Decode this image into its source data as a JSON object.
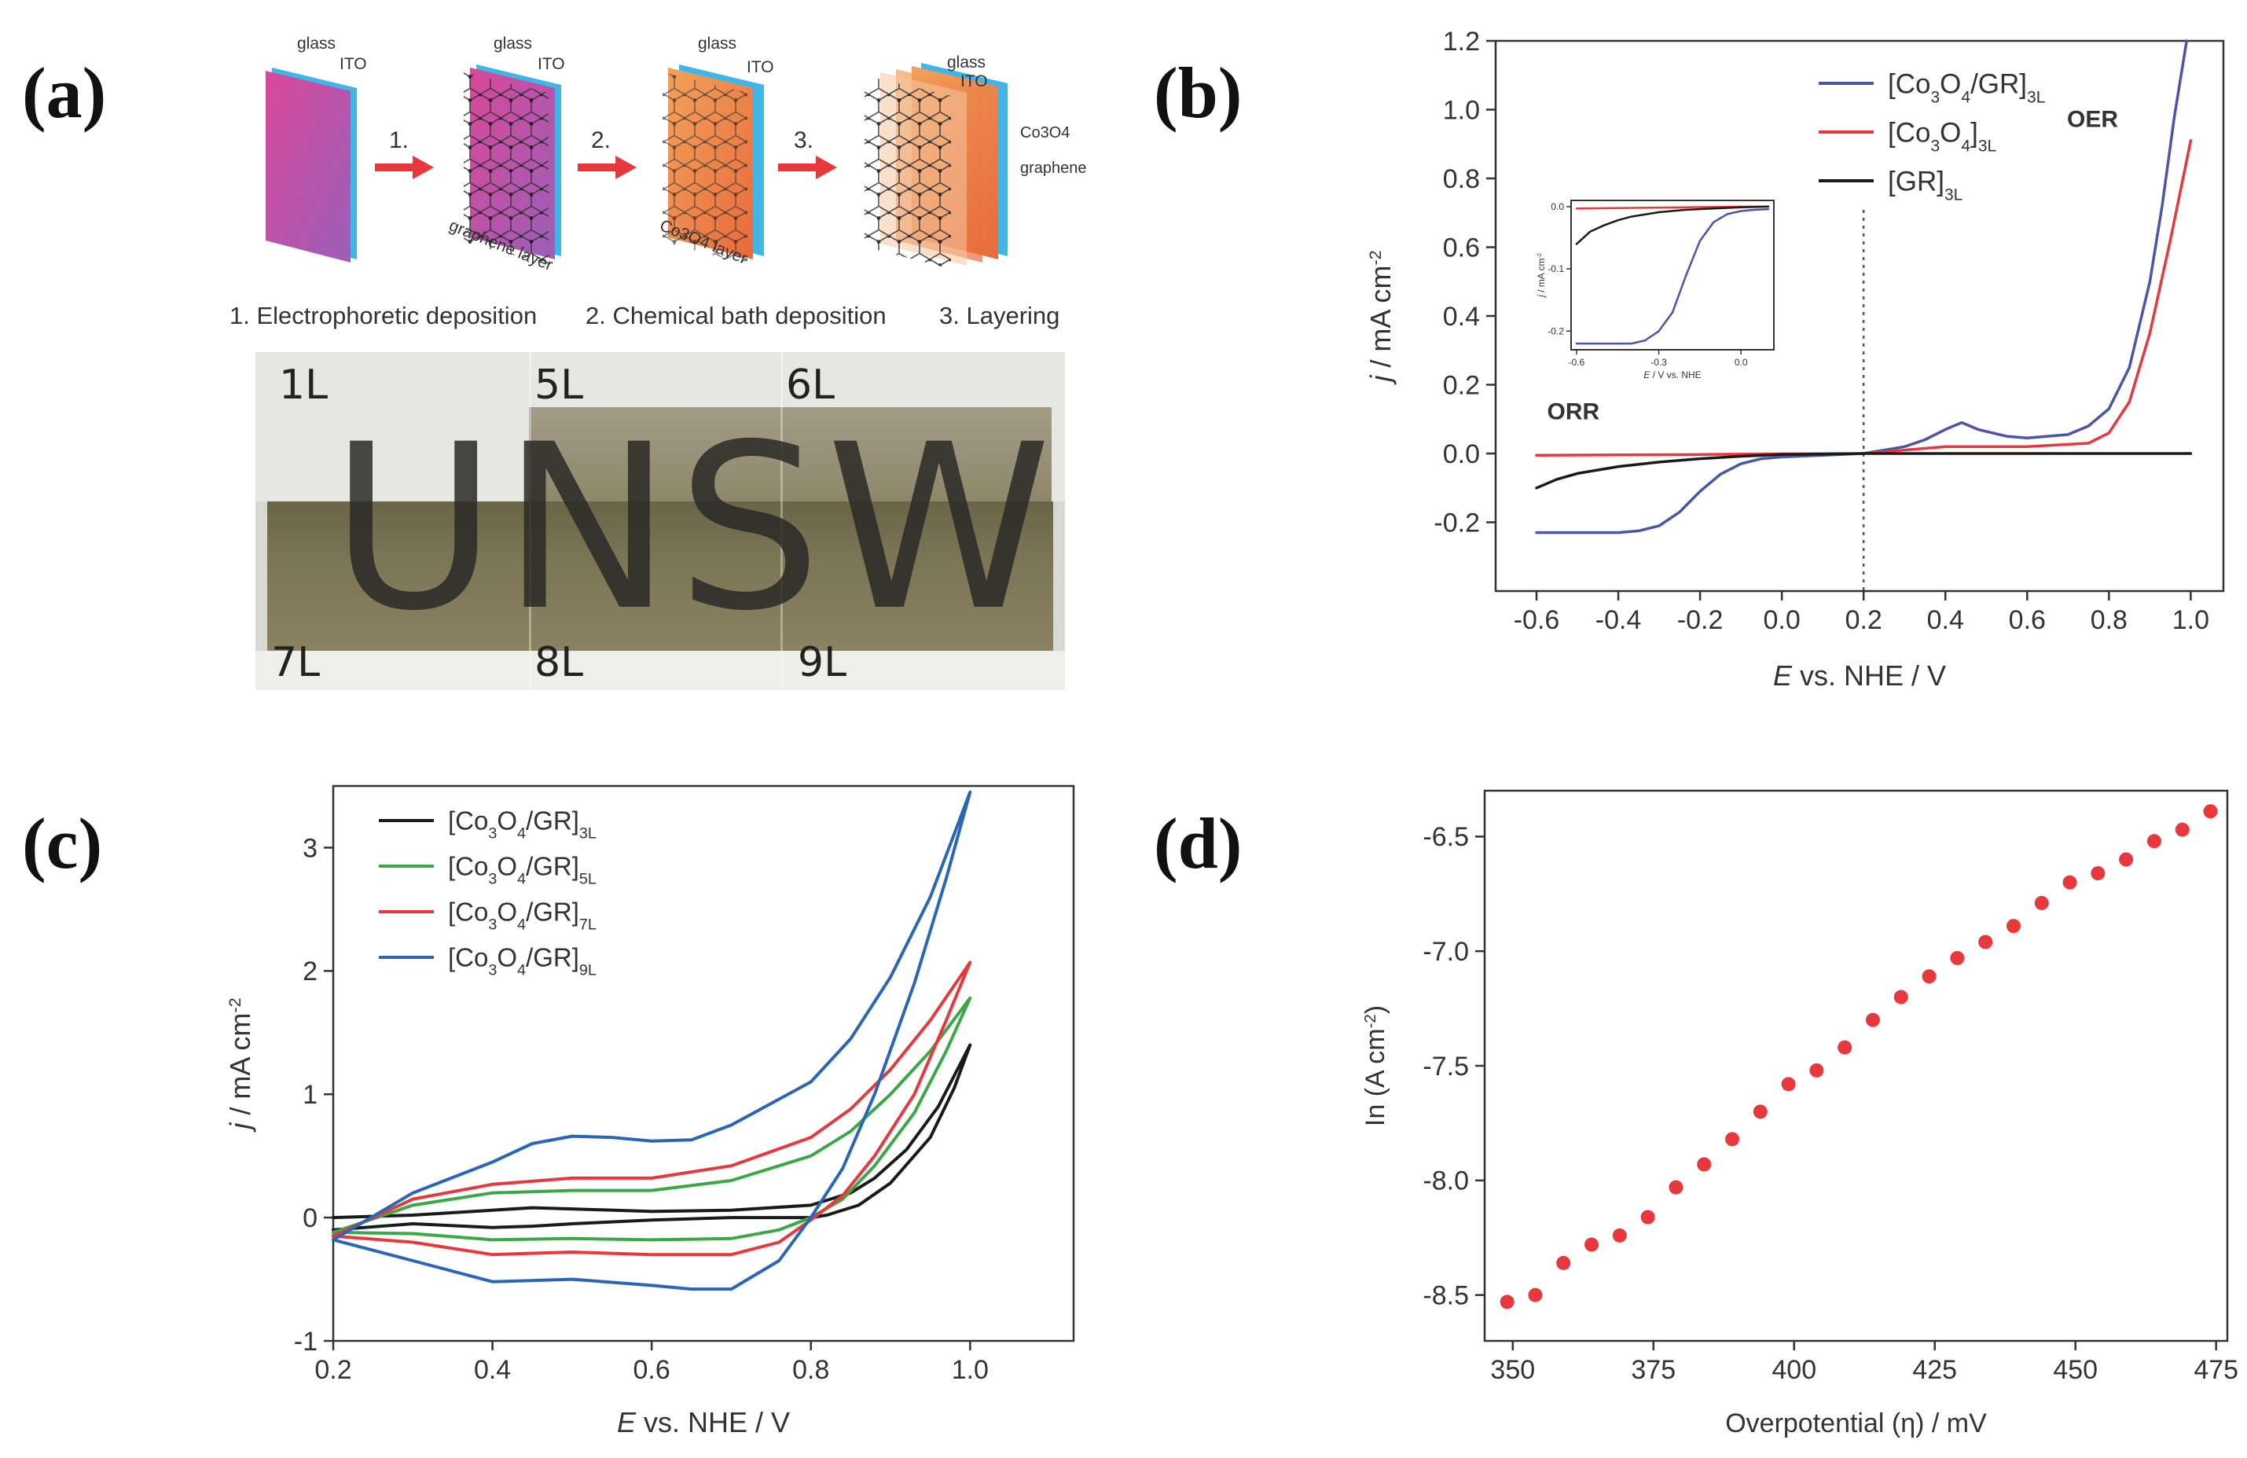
{
  "panels": {
    "a": "(a)",
    "b": "(b)",
    "c": "(c)",
    "d": "(d)"
  },
  "schematic": {
    "labels": {
      "glass": "glass",
      "ito": "ITO",
      "graphene_layer": "graphene layer",
      "co3o4_layer": "Co3O4 layer",
      "co3o4": "Co3O4",
      "graphene": "graphene"
    },
    "step_numbers": [
      "1.",
      "2.",
      "3."
    ],
    "step_captions": [
      "1. Electrophoretic deposition",
      "2. Chemical bath deposition",
      "3. Layering"
    ]
  },
  "photo": {
    "word": "UNSW",
    "layer_labels": [
      "1L",
      "5L",
      "6L",
      "7L",
      "8L",
      "9L"
    ]
  },
  "chart_data": [
    {
      "id": "b",
      "type": "line",
      "xlabel_italic": "E",
      "xlabel": "vs. NHE / V",
      "ylabel_italic": "j",
      "ylabel": "/ mA cm",
      "ylabel_sup": "-2",
      "xlim": [
        -0.7,
        1.08
      ],
      "ylim": [
        -0.4,
        1.2
      ],
      "xticks": [
        -0.6,
        -0.4,
        -0.2,
        0.0,
        0.2,
        0.4,
        0.6,
        0.8,
        1.0
      ],
      "yticks": [
        -0.2,
        0.0,
        0.2,
        0.4,
        0.6,
        0.8,
        1.0,
        1.2
      ],
      "vline": 0.2,
      "annotations": [
        {
          "text": "ORR",
          "x": -0.51,
          "y": 0.1
        },
        {
          "text": "OER",
          "x": 0.76,
          "y": 0.95
        }
      ],
      "legend": [
        {
          "base": "[Co",
          "s1": "3",
          "mid": "O",
          "s2": "4",
          "end": "/GR]",
          "sub": "3L",
          "color": "#4a55a8"
        },
        {
          "base": "[Co",
          "s1": "3",
          "mid": "O",
          "s2": "4",
          "end": "]",
          "sub": "3L",
          "color": "#e8383d"
        },
        {
          "base": "[GR]",
          "s1": "",
          "mid": "",
          "s2": "",
          "end": "",
          "sub": "3L",
          "color": "#1a1a1a"
        }
      ],
      "series": [
        {
          "name": "[Co3O4/GR]3L",
          "color": "#4a55a8",
          "x": [
            -0.6,
            -0.4,
            -0.35,
            -0.3,
            -0.25,
            -0.2,
            -0.15,
            -0.1,
            -0.05,
            0.0,
            0.1,
            0.2,
            0.3,
            0.35,
            0.4,
            0.44,
            0.48,
            0.55,
            0.6,
            0.7,
            0.75,
            0.8,
            0.85,
            0.9,
            0.93,
            0.96,
            0.99
          ],
          "y": [
            -0.23,
            -0.23,
            -0.225,
            -0.21,
            -0.17,
            -0.11,
            -0.06,
            -0.03,
            -0.015,
            -0.01,
            -0.005,
            0.0,
            0.02,
            0.04,
            0.07,
            0.09,
            0.07,
            0.05,
            0.045,
            0.055,
            0.08,
            0.13,
            0.25,
            0.5,
            0.72,
            0.98,
            1.2
          ]
        },
        {
          "name": "[Co3O4]3L",
          "color": "#e8383d",
          "x": [
            -0.6,
            -0.4,
            -0.2,
            0.0,
            0.2,
            0.4,
            0.6,
            0.75,
            0.8,
            0.85,
            0.9,
            0.95,
            1.0
          ],
          "y": [
            -0.005,
            -0.004,
            -0.003,
            -0.001,
            0.0,
            0.02,
            0.02,
            0.03,
            0.06,
            0.15,
            0.35,
            0.62,
            0.91
          ]
        },
        {
          "name": "[GR]3L",
          "color": "#1a1a1a",
          "x": [
            -0.6,
            -0.55,
            -0.5,
            -0.4,
            -0.3,
            -0.2,
            -0.1,
            0.0,
            0.2,
            0.4,
            0.6,
            0.8,
            1.0
          ],
          "y": [
            -0.1,
            -0.075,
            -0.058,
            -0.038,
            -0.025,
            -0.015,
            -0.008,
            -0.003,
            0.0,
            0.0,
            0.0,
            0.0,
            0.0
          ]
        }
      ],
      "inset": {
        "xlabel_italic": "E",
        "xlabel": "/ V vs. NHE",
        "ylabel_italic": "j",
        "ylabel": "/ mA cm",
        "ylabel_sup": "-2",
        "xlim": [
          -0.62,
          0.12
        ],
        "ylim": [
          -0.23,
          0.01
        ],
        "xticks": [
          -0.6,
          -0.3,
          0.0
        ],
        "xtick_labels": [
          "-0.6",
          "-0.3",
          "0.0"
        ],
        "yticks": [
          0.0,
          -0.1,
          -0.2
        ],
        "ytick_labels": [
          "0.0",
          "-0.1",
          "-0.2"
        ],
        "series": [
          {
            "color": "#e8383d",
            "x": [
              -0.6,
              -0.4,
              -0.2,
              0.0,
              0.1
            ],
            "y": [
              -0.003,
              -0.002,
              -0.001,
              0.0,
              0.0
            ]
          },
          {
            "color": "#1a1a1a",
            "x": [
              -0.6,
              -0.55,
              -0.5,
              -0.45,
              -0.4,
              -0.3,
              -0.2,
              -0.1,
              0.0,
              0.1
            ],
            "y": [
              -0.06,
              -0.04,
              -0.03,
              -0.022,
              -0.016,
              -0.009,
              -0.005,
              -0.003,
              -0.001,
              0.0
            ]
          },
          {
            "color": "#4a55a8",
            "x": [
              -0.6,
              -0.4,
              -0.35,
              -0.3,
              -0.25,
              -0.2,
              -0.15,
              -0.1,
              -0.05,
              0.0,
              0.05,
              0.1
            ],
            "y": [
              -0.22,
              -0.22,
              -0.215,
              -0.2,
              -0.17,
              -0.11,
              -0.055,
              -0.025,
              -0.012,
              -0.007,
              -0.005,
              -0.004
            ]
          }
        ]
      }
    },
    {
      "id": "c",
      "type": "line",
      "xlabel_italic": "E",
      "xlabel": "vs. NHE / V",
      "ylabel_italic": "j",
      "ylabel": "/ mA cm",
      "ylabel_sup": "-2",
      "xlim": [
        0.2,
        1.13
      ],
      "ylim": [
        -1.0,
        3.5
      ],
      "xticks": [
        0.2,
        0.4,
        0.6,
        0.8,
        1.0
      ],
      "yticks": [
        -1,
        0,
        1,
        2,
        3
      ],
      "legend": [
        {
          "base": "[Co",
          "s1": "3",
          "mid": "O",
          "s2": "4",
          "end": "/GR]",
          "sub": "3L",
          "color": "#1a1a1a"
        },
        {
          "base": "[Co",
          "s1": "3",
          "mid": "O",
          "s2": "4",
          "end": "/GR]",
          "sub": "5L",
          "color": "#3aa845"
        },
        {
          "base": "[Co",
          "s1": "3",
          "mid": "O",
          "s2": "4",
          "end": "/GR]",
          "sub": "7L",
          "color": "#e8383d"
        },
        {
          "base": "[Co",
          "s1": "3",
          "mid": "O",
          "s2": "4",
          "end": "/GR]",
          "sub": "9L",
          "color": "#2a66b8"
        }
      ],
      "series": [
        {
          "name": "[Co3O4/GR]3L",
          "color": "#1a1a1a",
          "x": [
            0.2,
            0.3,
            0.4,
            0.45,
            0.5,
            0.6,
            0.7,
            0.8,
            0.85,
            0.88,
            0.92,
            0.96,
            1.0,
            0.98,
            0.95,
            0.9,
            0.86,
            0.82,
            0.8,
            0.7,
            0.6,
            0.5,
            0.45,
            0.4,
            0.3,
            0.2
          ],
          "y": [
            0.0,
            0.02,
            0.06,
            0.08,
            0.07,
            0.05,
            0.06,
            0.1,
            0.2,
            0.32,
            0.55,
            0.9,
            1.4,
            1.05,
            0.65,
            0.28,
            0.1,
            0.02,
            0.0,
            0.0,
            -0.02,
            -0.05,
            -0.07,
            -0.08,
            -0.05,
            -0.1
          ]
        },
        {
          "name": "[Co3O4/GR]5L",
          "color": "#3aa845",
          "x": [
            0.2,
            0.3,
            0.4,
            0.5,
            0.6,
            0.7,
            0.8,
            0.85,
            0.9,
            0.95,
            1.0,
            0.97,
            0.93,
            0.88,
            0.84,
            0.8,
            0.76,
            0.7,
            0.6,
            0.5,
            0.4,
            0.3,
            0.2
          ],
          "y": [
            -0.12,
            0.1,
            0.2,
            0.22,
            0.22,
            0.3,
            0.5,
            0.7,
            1.0,
            1.35,
            1.78,
            1.35,
            0.85,
            0.42,
            0.15,
            0.0,
            -0.1,
            -0.17,
            -0.18,
            -0.17,
            -0.18,
            -0.13,
            -0.12
          ]
        },
        {
          "name": "[Co3O4/GR]7L",
          "color": "#e8383d",
          "x": [
            0.2,
            0.3,
            0.4,
            0.5,
            0.6,
            0.7,
            0.8,
            0.85,
            0.9,
            0.95,
            1.0,
            0.97,
            0.93,
            0.88,
            0.84,
            0.8,
            0.76,
            0.7,
            0.6,
            0.5,
            0.4,
            0.3,
            0.2
          ],
          "y": [
            -0.15,
            0.15,
            0.27,
            0.32,
            0.32,
            0.42,
            0.65,
            0.88,
            1.2,
            1.6,
            2.07,
            1.6,
            1.0,
            0.5,
            0.18,
            -0.02,
            -0.2,
            -0.3,
            -0.3,
            -0.28,
            -0.3,
            -0.2,
            -0.15
          ]
        },
        {
          "name": "[Co3O4/GR]9L",
          "color": "#2a66b8",
          "x": [
            0.2,
            0.3,
            0.4,
            0.45,
            0.5,
            0.55,
            0.6,
            0.65,
            0.7,
            0.8,
            0.85,
            0.9,
            0.95,
            1.0,
            0.97,
            0.93,
            0.88,
            0.84,
            0.8,
            0.76,
            0.7,
            0.65,
            0.6,
            0.5,
            0.4,
            0.3,
            0.2
          ],
          "y": [
            -0.18,
            0.2,
            0.45,
            0.6,
            0.66,
            0.65,
            0.62,
            0.63,
            0.75,
            1.1,
            1.45,
            1.95,
            2.6,
            3.45,
            2.75,
            1.9,
            1.0,
            0.4,
            0.0,
            -0.35,
            -0.58,
            -0.58,
            -0.55,
            -0.5,
            -0.52,
            -0.35,
            -0.18
          ]
        }
      ]
    },
    {
      "id": "d",
      "type": "scatter",
      "xlabel": "Overpotential (η) / mV",
      "ylabel": "In (A cm",
      "ylabel_sup": "-2",
      "ylabel_end": ")",
      "xlim": [
        345,
        477
      ],
      "ylim": [
        -8.7,
        -6.3
      ],
      "xticks": [
        350,
        375,
        400,
        425,
        450,
        475
      ],
      "yticks": [
        -8.5,
        -8.0,
        -7.5,
        -7.0,
        -6.5
      ],
      "ytick_labels": [
        "-8.5",
        "-8.0",
        "-7.5",
        "-7.0",
        "-6.5"
      ],
      "color": "#e8383d",
      "x": [
        349,
        354,
        359,
        364,
        369,
        374,
        379,
        384,
        389,
        394,
        399,
        404,
        409,
        414,
        419,
        424,
        429,
        434,
        439,
        444,
        449,
        454,
        459,
        464,
        469,
        474
      ],
      "y": [
        -8.53,
        -8.5,
        -8.36,
        -8.28,
        -8.24,
        -8.16,
        -8.03,
        -7.93,
        -7.82,
        -7.7,
        -7.58,
        -7.52,
        -7.42,
        -7.3,
        -7.2,
        -7.11,
        -7.03,
        -6.96,
        -6.89,
        -6.79,
        -6.7,
        -6.66,
        -6.6,
        -6.52,
        -6.47,
        -6.39
      ]
    }
  ]
}
